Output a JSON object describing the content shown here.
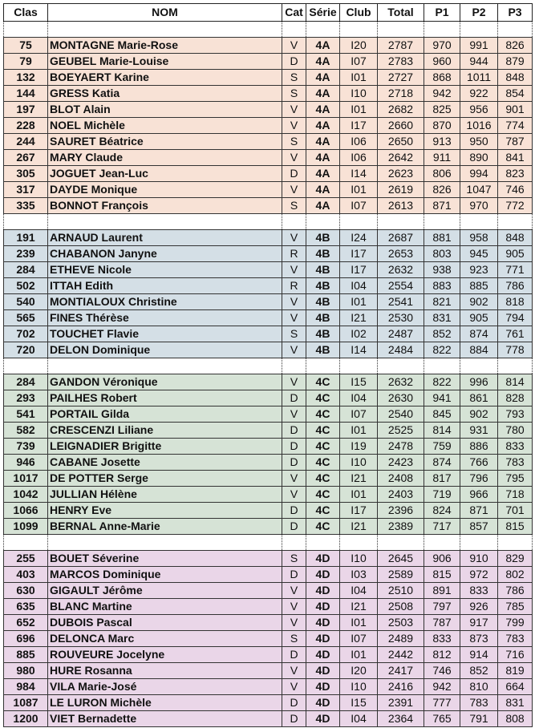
{
  "headers": [
    "Clas",
    "NOM",
    "Cat",
    "Série",
    "Club",
    "Total",
    "P1",
    "P2",
    "P3"
  ],
  "groups": [
    {
      "serie": "4A",
      "color": "#f8e2d6",
      "rows": [
        [
          "75",
          "MONTAGNE Marie-Rose",
          "V",
          "4A",
          "I20",
          "2787",
          "970",
          "991",
          "826"
        ],
        [
          "79",
          "GEUBEL Marie-Louise",
          "D",
          "4A",
          "I07",
          "2783",
          "960",
          "944",
          "879"
        ],
        [
          "132",
          "BOEYAERT Karine",
          "S",
          "4A",
          "I01",
          "2727",
          "868",
          "1011",
          "848"
        ],
        [
          "144",
          "GRESS Katia",
          "S",
          "4A",
          "I10",
          "2718",
          "942",
          "922",
          "854"
        ],
        [
          "197",
          "BLOT Alain",
          "V",
          "4A",
          "I01",
          "2682",
          "825",
          "956",
          "901"
        ],
        [
          "228",
          "NOEL Michèle",
          "V",
          "4A",
          "I17",
          "2660",
          "870",
          "1016",
          "774"
        ],
        [
          "244",
          "SAURET Béatrice",
          "S",
          "4A",
          "I06",
          "2650",
          "913",
          "950",
          "787"
        ],
        [
          "267",
          "MARY Claude",
          "V",
          "4A",
          "I06",
          "2642",
          "911",
          "890",
          "841"
        ],
        [
          "305",
          "JOGUET Jean-Luc",
          "D",
          "4A",
          "I14",
          "2623",
          "806",
          "994",
          "823"
        ],
        [
          "317",
          "DAYDE Monique",
          "V",
          "4A",
          "I01",
          "2619",
          "826",
          "1047",
          "746"
        ],
        [
          "335",
          "BONNOT François",
          "S",
          "4A",
          "I07",
          "2613",
          "871",
          "970",
          "772"
        ]
      ]
    },
    {
      "serie": "4B",
      "color": "#d4dfe6",
      "rows": [
        [
          "191",
          "ARNAUD Laurent",
          "V",
          "4B",
          "I24",
          "2687",
          "881",
          "958",
          "848"
        ],
        [
          "239",
          "CHABANON Janyne",
          "R",
          "4B",
          "I17",
          "2653",
          "803",
          "945",
          "905"
        ],
        [
          "284",
          "ETHEVE Nicole",
          "V",
          "4B",
          "I17",
          "2632",
          "938",
          "923",
          "771"
        ],
        [
          "502",
          "ITTAH Edith",
          "R",
          "4B",
          "I04",
          "2554",
          "883",
          "885",
          "786"
        ],
        [
          "540",
          "MONTIALOUX Christine",
          "V",
          "4B",
          "I01",
          "2541",
          "821",
          "902",
          "818"
        ],
        [
          "565",
          "FINES Thérèse",
          "V",
          "4B",
          "I21",
          "2530",
          "831",
          "905",
          "794"
        ],
        [
          "702",
          "TOUCHET Flavie",
          "S",
          "4B",
          "I02",
          "2487",
          "852",
          "874",
          "761"
        ],
        [
          "720",
          "DELON Dominique",
          "V",
          "4B",
          "I14",
          "2484",
          "822",
          "884",
          "778"
        ]
      ]
    },
    {
      "serie": "4C",
      "color": "#d6e3d6",
      "rows": [
        [
          "284",
          "GANDON Véronique",
          "V",
          "4C",
          "I15",
          "2632",
          "822",
          "996",
          "814"
        ],
        [
          "293",
          "PAILHES Robert",
          "D",
          "4C",
          "I04",
          "2630",
          "941",
          "861",
          "828"
        ],
        [
          "541",
          "PORTAIL Gilda",
          "V",
          "4C",
          "I07",
          "2540",
          "845",
          "902",
          "793"
        ],
        [
          "582",
          "CRESCENZI Liliane",
          "D",
          "4C",
          "I01",
          "2525",
          "814",
          "931",
          "780"
        ],
        [
          "739",
          "LEIGNADIER Brigitte",
          "D",
          "4C",
          "I19",
          "2478",
          "759",
          "886",
          "833"
        ],
        [
          "946",
          "CABANE Josette",
          "D",
          "4C",
          "I10",
          "2423",
          "874",
          "766",
          "783"
        ],
        [
          "1017",
          "DE POTTER Serge",
          "V",
          "4C",
          "I21",
          "2408",
          "817",
          "796",
          "795"
        ],
        [
          "1042",
          "JULLIAN Hélène",
          "V",
          "4C",
          "I01",
          "2403",
          "719",
          "966",
          "718"
        ],
        [
          "1066",
          "HENRY Eve",
          "D",
          "4C",
          "I17",
          "2396",
          "824",
          "871",
          "701"
        ],
        [
          "1099",
          "BERNAL Anne-Marie",
          "D",
          "4C",
          "I21",
          "2389",
          "717",
          "857",
          "815"
        ]
      ]
    },
    {
      "serie": "4D",
      "color": "#ead6e8",
      "rows": [
        [
          "255",
          "BOUET Séverine",
          "S",
          "4D",
          "I10",
          "2645",
          "906",
          "910",
          "829"
        ],
        [
          "403",
          "MARCOS Dominique",
          "D",
          "4D",
          "I03",
          "2589",
          "815",
          "972",
          "802"
        ],
        [
          "630",
          "GIGAULT Jérôme",
          "V",
          "4D",
          "I04",
          "2510",
          "891",
          "833",
          "786"
        ],
        [
          "635",
          "BLANC Martine",
          "V",
          "4D",
          "I21",
          "2508",
          "797",
          "926",
          "785"
        ],
        [
          "652",
          "DUBOIS Pascal",
          "V",
          "4D",
          "I01",
          "2503",
          "787",
          "917",
          "799"
        ],
        [
          "696",
          "DELONCA Marc",
          "S",
          "4D",
          "I07",
          "2489",
          "833",
          "873",
          "783"
        ],
        [
          "885",
          "ROUVEURE Jocelyne",
          "D",
          "4D",
          "I01",
          "2442",
          "812",
          "914",
          "716"
        ],
        [
          "980",
          "HURE Rosanna",
          "V",
          "4D",
          "I20",
          "2417",
          "746",
          "852",
          "819"
        ],
        [
          "984",
          "VILA Marie-José",
          "V",
          "4D",
          "I10",
          "2416",
          "942",
          "810",
          "664"
        ],
        [
          "1087",
          "LE LURON Michèle",
          "D",
          "4D",
          "I15",
          "2391",
          "777",
          "783",
          "831"
        ],
        [
          "1200",
          "VIET Bernadette",
          "D",
          "4D",
          "I04",
          "2364",
          "765",
          "791",
          "808"
        ]
      ]
    }
  ]
}
